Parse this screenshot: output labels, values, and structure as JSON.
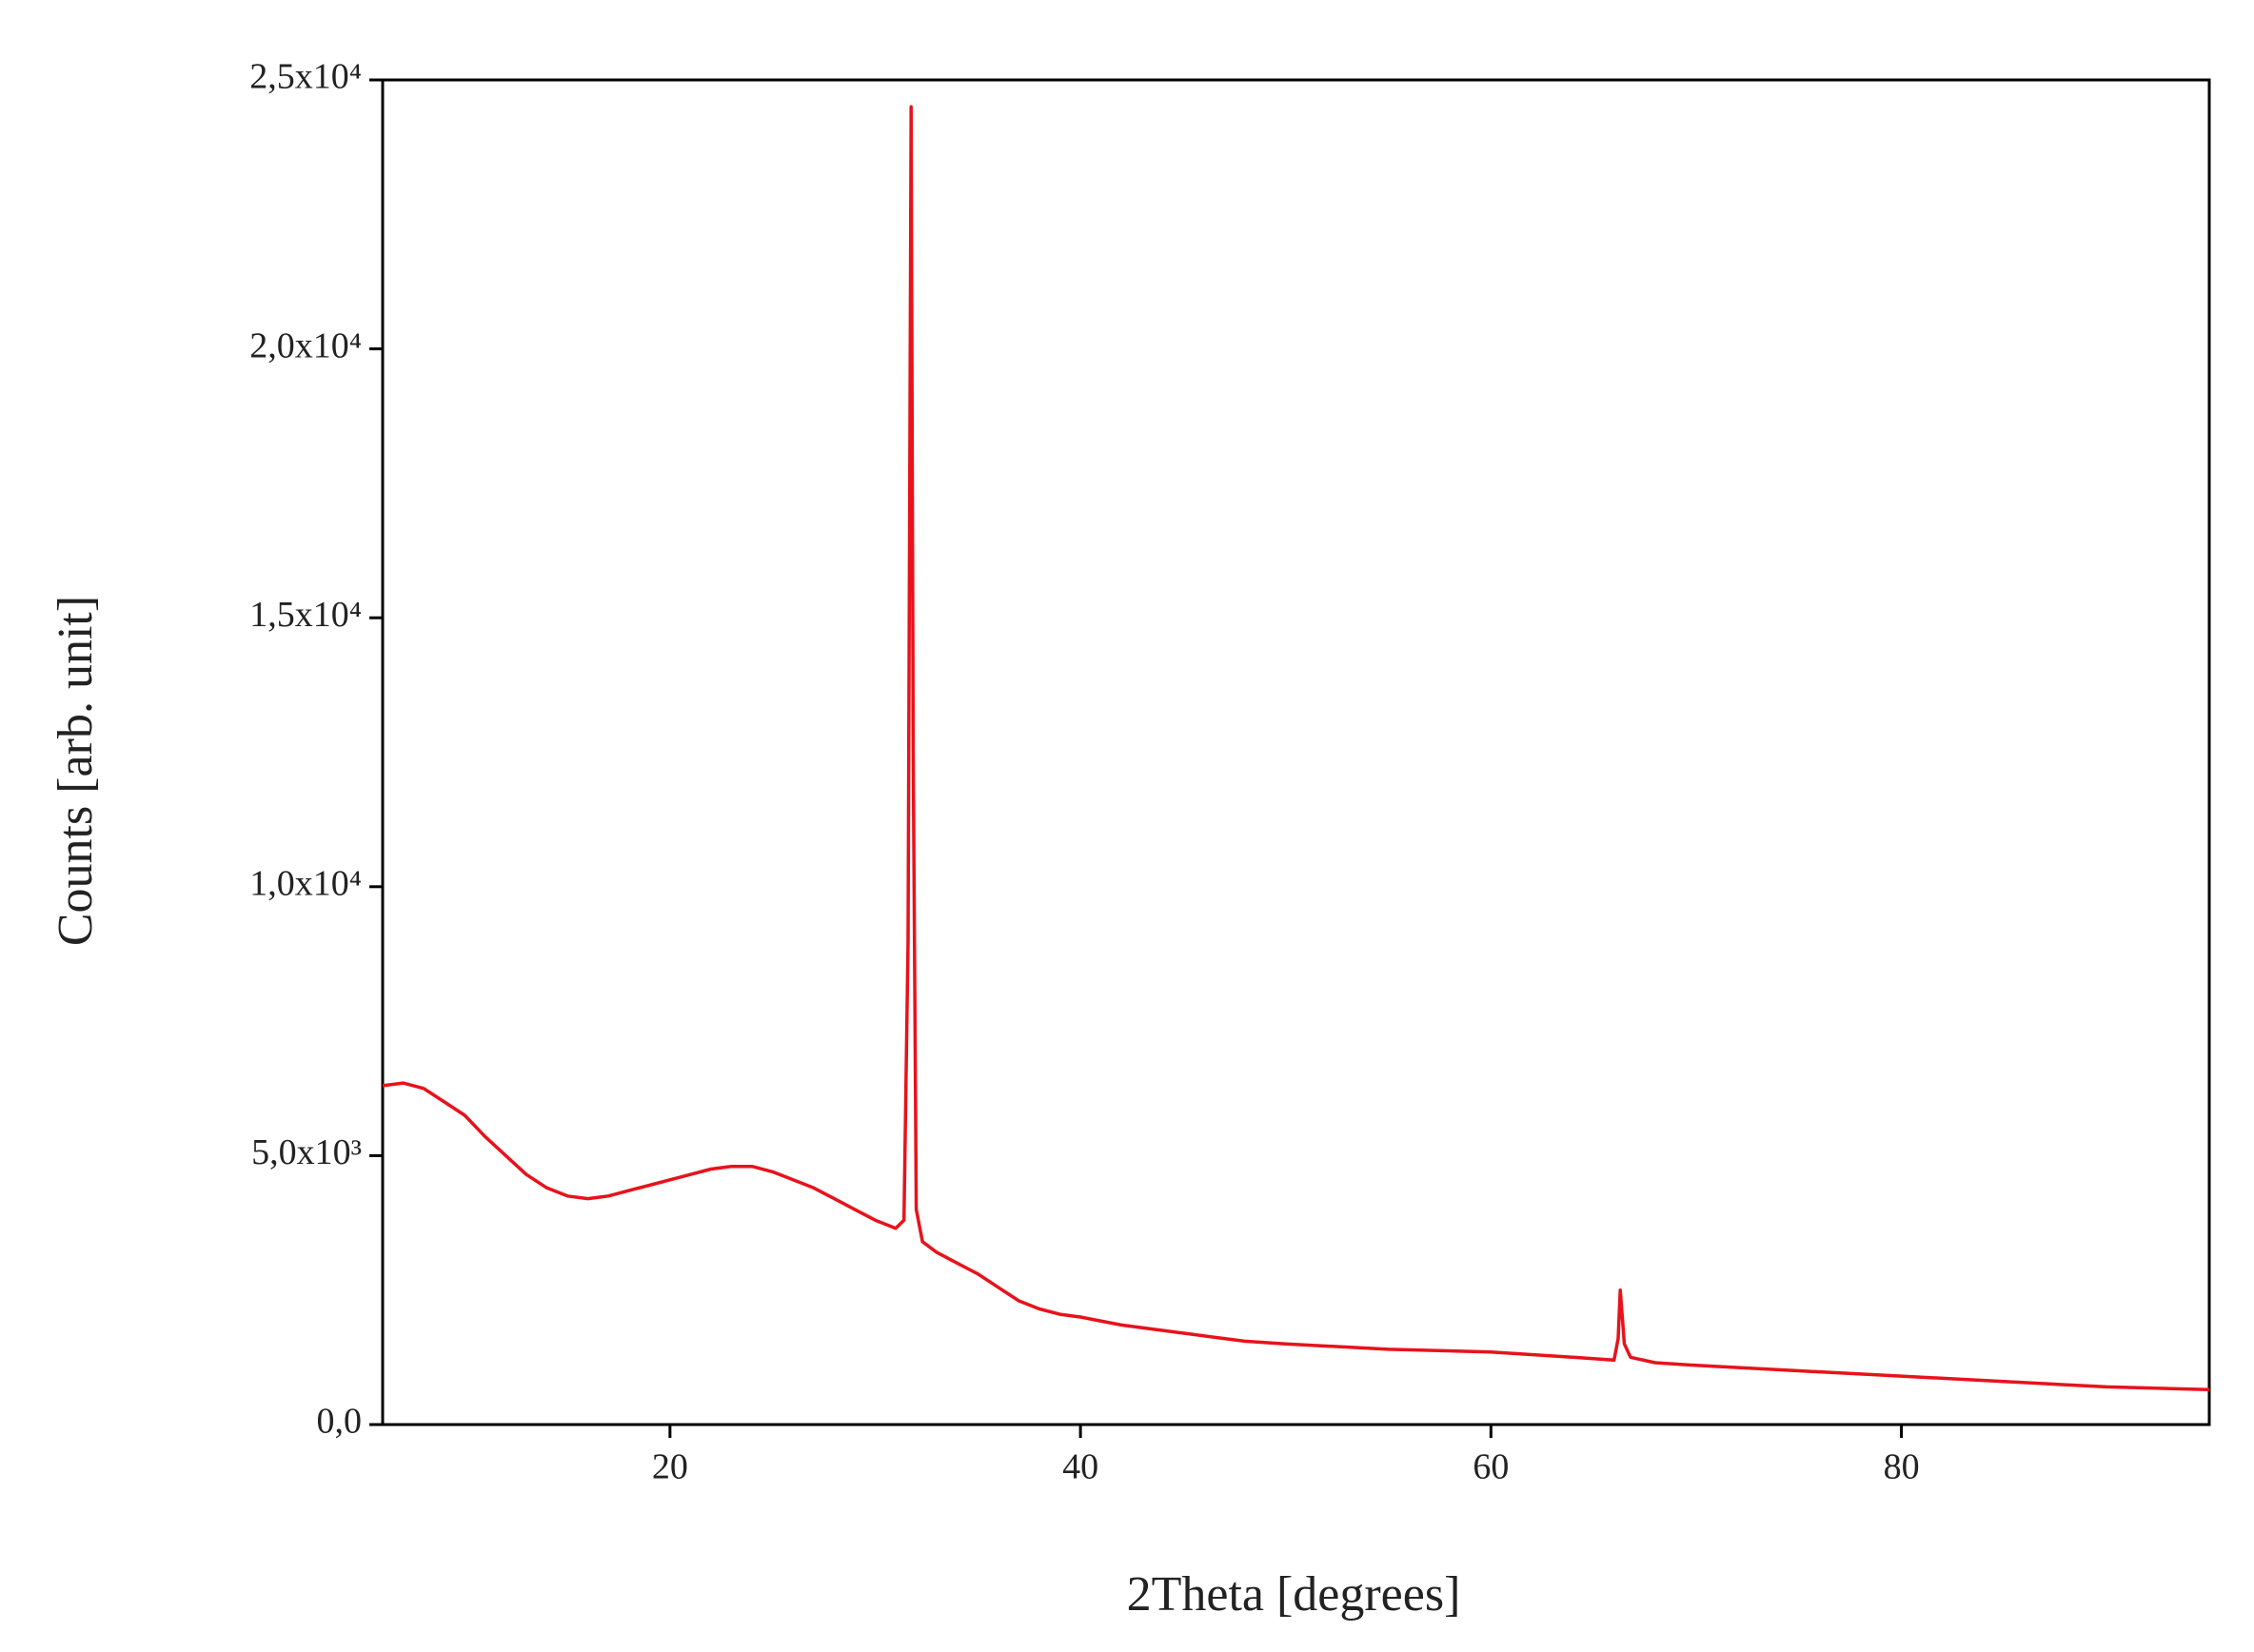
{
  "chart_data": {
    "type": "line",
    "x_label": "2Theta [degrees]",
    "y_label": "Counts [arb. unit]",
    "xlim": [
      6,
      95
    ],
    "ylim": [
      0,
      25000
    ],
    "xticks": [
      20,
      40,
      60,
      80
    ],
    "yticks": [
      {
        "value": 0,
        "label": "0,0"
      },
      {
        "value": 5000,
        "label": "5,0x10³"
      },
      {
        "value": 10000,
        "label": "1,0x10⁴"
      },
      {
        "value": 15000,
        "label": "1,5x10⁴"
      },
      {
        "value": 20000,
        "label": "2,0x10⁴"
      },
      {
        "value": 25000,
        "label": "2,5x10⁴"
      }
    ],
    "grid": false,
    "series": [
      {
        "color": "#e8121b",
        "x": [
          6,
          7,
          8,
          9,
          10,
          11,
          12,
          13,
          14,
          15,
          16,
          17,
          18,
          19,
          20,
          21,
          22,
          23,
          24,
          25,
          26,
          27,
          28,
          29,
          30,
          31,
          31.4,
          31.6,
          31.75,
          31.85,
          32,
          32.3,
          33,
          34,
          35,
          36,
          37,
          38,
          39,
          40,
          42,
          45,
          48,
          50,
          55,
          60,
          64,
          66,
          66.2,
          66.3,
          66.5,
          66.8,
          68,
          70,
          75,
          80,
          85,
          90,
          95
        ],
        "values": [
          6300,
          6350,
          6250,
          6000,
          5750,
          5350,
          5000,
          4650,
          4400,
          4250,
          4200,
          4250,
          4350,
          4450,
          4550,
          4650,
          4750,
          4800,
          4800,
          4700,
          4550,
          4400,
          4200,
          4000,
          3800,
          3650,
          3800,
          9000,
          24500,
          12500,
          4000,
          3400,
          3200,
          3000,
          2800,
          2550,
          2300,
          2150,
          2050,
          2000,
          1850,
          1700,
          1550,
          1500,
          1400,
          1350,
          1250,
          1200,
          1600,
          2500,
          1500,
          1250,
          1150,
          1100,
          1000,
          900,
          800,
          700,
          650
        ]
      }
    ]
  }
}
